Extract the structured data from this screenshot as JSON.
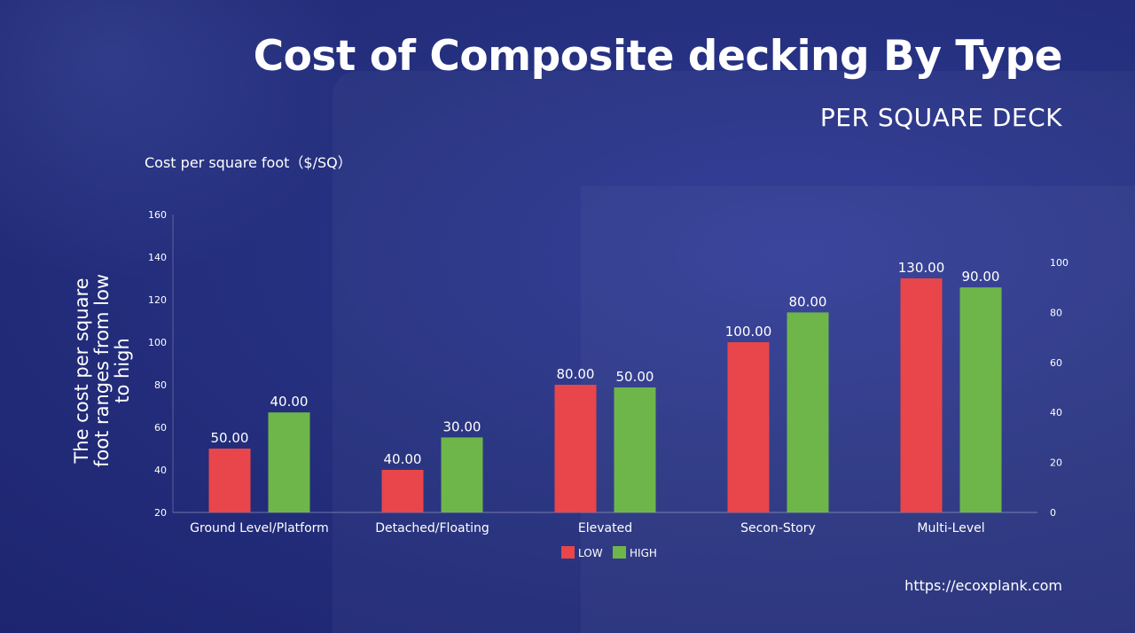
{
  "header": {
    "title": "Cost of Composite decking By Type",
    "subtitle": "PER SQUARE DECK"
  },
  "caption": "Cost per square foot（$/SQ）",
  "footer": {
    "url": "https://ecoxplank.com"
  },
  "colors": {
    "low": "#e8464a",
    "high": "#6eb64a",
    "background": "#25307f"
  },
  "chart_data": {
    "type": "bar",
    "title": "Cost of Composite decking By Type",
    "ylabel": "The cost per square foot ranges from low to high",
    "categories": [
      "Ground Level/Platform",
      "Detached/Floating",
      "Elevated",
      "Secon-Story",
      "Multi-Level"
    ],
    "series": [
      {
        "name": "LOW",
        "axis": "left",
        "values": [
          50,
          40,
          80,
          100,
          130
        ],
        "labels": [
          "50.00",
          "40.00",
          "80.00",
          "100.00",
          "130.00"
        ]
      },
      {
        "name": "HIGH",
        "axis": "right",
        "values": [
          40,
          30,
          50,
          80,
          90
        ],
        "labels": [
          "40.00",
          "30.00",
          "50.00",
          "80.00",
          "90.00"
        ]
      }
    ],
    "ylim": [
      20,
      160
    ],
    "yticks": [
      "20",
      "40",
      "60",
      "80",
      "100",
      "120",
      "140",
      "160"
    ],
    "y2lim": [
      0,
      100
    ],
    "y2ticks": [
      "0",
      "20",
      "40",
      "60",
      "80",
      "100"
    ],
    "legend": "bottom-center",
    "grid": false
  }
}
